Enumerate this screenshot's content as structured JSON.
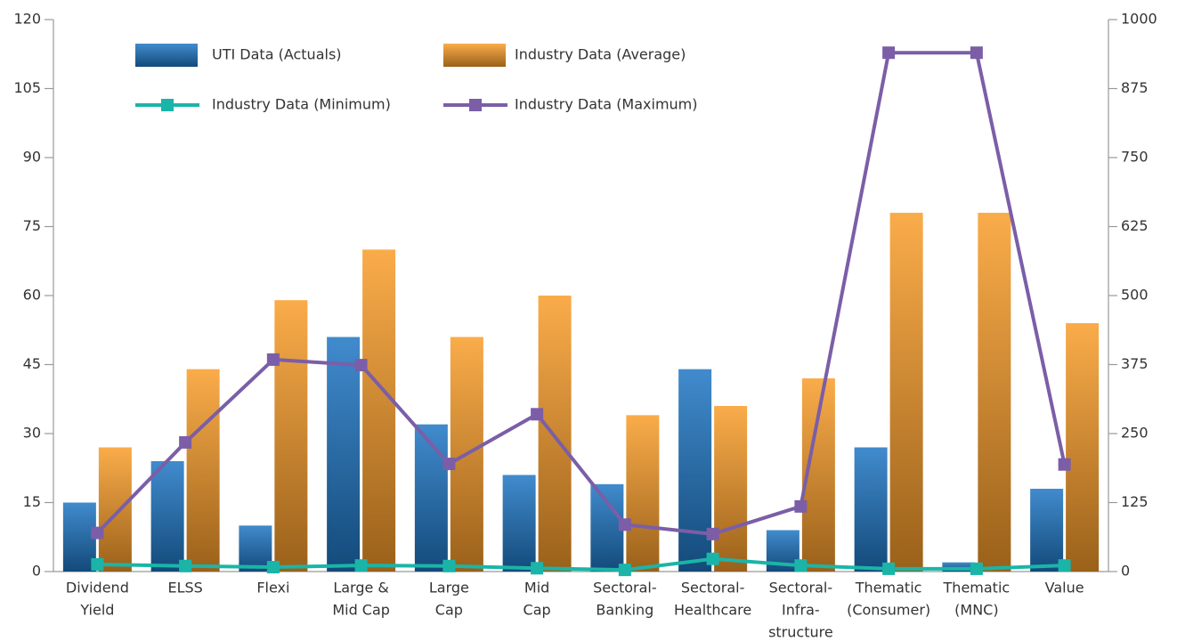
{
  "chart_data": {
    "type": "bar-line",
    "categories": [
      [
        "Dividend",
        "Yield"
      ],
      [
        "ELSS"
      ],
      [
        "Flexi"
      ],
      [
        "Large &",
        "Mid Cap"
      ],
      [
        "Large",
        "Cap"
      ],
      [
        "Mid",
        "Cap"
      ],
      [
        "Sectoral-",
        "Banking"
      ],
      [
        "Sectoral-",
        "Healthcare"
      ],
      [
        "Sectoral-",
        "Infra-",
        "structure"
      ],
      [
        "Thematic",
        "(Consumer)"
      ],
      [
        "Thematic",
        "(MNC)"
      ],
      [
        "Value"
      ]
    ],
    "series": [
      {
        "name": "UTI Data (Actuals)",
        "type": "bar",
        "color": "#1f77c4",
        "values": [
          15,
          24,
          10,
          51,
          32,
          21,
          19,
          44,
          9,
          27,
          2,
          18
        ]
      },
      {
        "name": "Industry Data (Average)",
        "type": "bar",
        "color": "#f99d2a",
        "values": [
          27,
          44,
          59,
          70,
          51,
          60,
          34,
          36,
          42,
          78,
          78,
          54
        ]
      },
      {
        "name": "Industry Data (Minimum)",
        "type": "line",
        "axis": "y2",
        "color": "#1ab5a8",
        "values": [
          13,
          10,
          8,
          11,
          10,
          6,
          3,
          23,
          11,
          5,
          5,
          11
        ]
      },
      {
        "name": "Industry Data (Maximum)",
        "type": "line",
        "axis": "y2",
        "color": "#7b5ea7",
        "values": [
          70,
          234,
          384,
          374,
          195,
          285,
          85,
          68,
          118,
          940,
          940,
          194
        ]
      }
    ],
    "ylim": [
      0,
      120
    ],
    "yticks": [
      0,
      15,
      30,
      45,
      60,
      75,
      90,
      105,
      120
    ],
    "y2lim": [
      0,
      1000
    ],
    "y2ticks": [
      0,
      125,
      250,
      375,
      500,
      625,
      750,
      875,
      1000
    ],
    "grid": false
  }
}
